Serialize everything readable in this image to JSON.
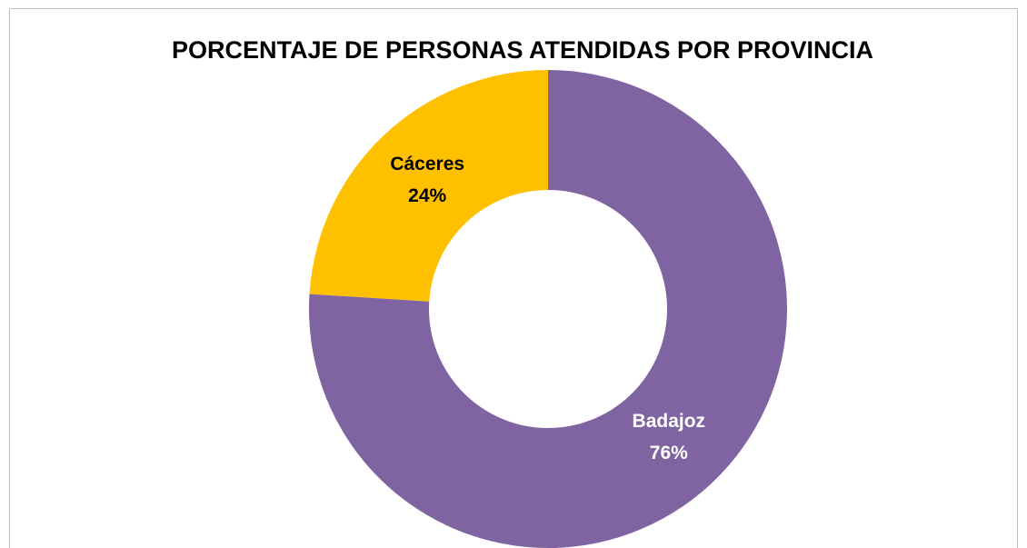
{
  "chart_data": {
    "type": "donut",
    "title": "PORCENTAJE DE PERSONAS ATENDIDAS POR PROVINCIA",
    "categories": [
      "Badajoz",
      "Cáceres"
    ],
    "values": [
      76,
      24
    ],
    "value_labels": [
      "76%",
      "24%"
    ],
    "colors": [
      "#8064a2",
      "#ffc000"
    ],
    "label_colors": [
      "#ffffff",
      "#000000"
    ]
  }
}
